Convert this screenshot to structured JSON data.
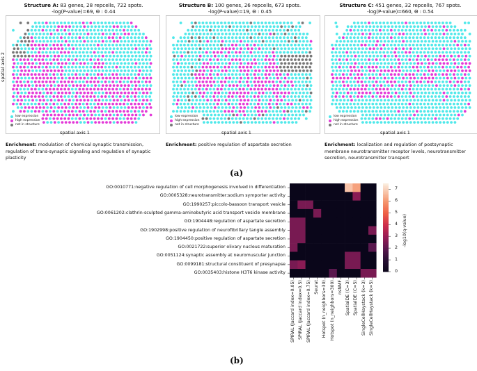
{
  "panel_a": {
    "structures": [
      {
        "name": "Structure A:",
        "rest": " 83 genes, 28 repcells, 722 spots.",
        "stats": "-log(P-value)=69, Θ : 0.44",
        "enrich_label": "Enrichment:",
        "enrich_text": " modulation of chemical synaptic transmission, regulation of trans-synaptic signaling and regulation of synaptic plasticity",
        "axis": "spatial axis 1"
      },
      {
        "name": "Structure B:",
        "rest": " 100 genes, 26 repcells, 673 spots.",
        "stats": "-log(P-value)=19, Θ : 0.45",
        "enrich_label": "Enrichment:",
        "enrich_text": " positive regulation of aspartate secretion",
        "axis": "spatial axis 1"
      },
      {
        "name": "Structure C:",
        "rest": " 451 genes, 32 repcells, 767 spots.",
        "stats": "-log(P-value)=660, Θ : 0.54",
        "enrich_label": "Enrichment:",
        "enrich_text": " localization and regulation of postsynaptic membrane neurotransmitter receptor levels, neurotransmitter secretion, neurotransmitter transport",
        "axis": "spatial axis 1"
      }
    ],
    "y_axis": "spatial axis 2",
    "legend": [
      "low expression",
      "high expression",
      "not in structure"
    ],
    "colors": {
      "low": "#4fe8ea",
      "high": "#e33ad8",
      "not": "#777777"
    },
    "fig_label": "(a)"
  },
  "panel_b": {
    "fig_label": "(b)",
    "chart_data": {
      "type": "heatmap",
      "rows": [
        "GO:0010771:negative regulation of cell morphogenesis involved in differentiation",
        "GO:0005328:neurotransmitter:sodium symporter activity",
        "GO:1990257:piccolo-bassoon transport vesicle",
        "GO:0061202:clathrin-sculpted gamma-aminobutyric acid transport vesicle membrane",
        "GO:1904448:regulation of aspartate secretion",
        "GO:1902998:positive regulation of neurofibrillary tangle assembly",
        "GO:1904450:positive regulation of aspartate secretion",
        "GO:0021722:superior olivary nucleus maturation",
        "GO:0051124:synaptic assembly at neuromuscular junction",
        "GO:0099181:structural constituent of presynapse",
        "GO:0035403:histone H3T6 kinase activity"
      ],
      "columns": [
        "SPIRAL (Jaccard index=0.05)",
        "SPIRAL (Jaccard index=0.5)",
        "SPIRAL (Jaccard index=0.75)",
        "Seurat",
        "Hotspot (n_neighbors=30)",
        "Hotspot (n_neighbors=300)",
        "nsNMF",
        "SpatialDE (C=3)",
        "SpatialDE (C=5)",
        "SingleCellHaystack (k=3)",
        "SingleCellHaystack (k=5)"
      ],
      "values": [
        [
          0,
          0,
          0,
          0,
          0,
          0,
          0,
          6.8,
          6.2,
          0,
          0
        ],
        [
          0,
          0,
          0,
          0,
          0,
          0,
          0,
          0,
          2.8,
          0,
          0
        ],
        [
          0,
          2.5,
          2.5,
          0,
          0,
          0,
          0,
          0,
          0,
          0,
          0
        ],
        [
          0,
          0,
          0,
          2.5,
          0,
          0,
          0,
          0,
          0,
          0,
          0
        ],
        [
          2.5,
          2.5,
          0,
          0,
          0,
          0,
          0,
          0,
          0,
          0,
          0
        ],
        [
          2.5,
          2.5,
          0,
          0,
          0,
          0,
          0,
          0,
          0,
          0,
          2.5
        ],
        [
          2.5,
          2.5,
          0,
          0,
          0,
          0,
          0,
          0,
          0,
          0,
          0
        ],
        [
          2.5,
          0,
          0,
          0,
          0,
          0,
          0,
          0,
          0,
          0,
          2.0
        ],
        [
          0,
          0,
          0,
          0,
          0,
          0,
          0,
          2.5,
          2.5,
          0,
          0
        ],
        [
          2.5,
          2.8,
          0,
          0,
          0,
          0,
          0,
          2.5,
          2.5,
          0,
          0
        ],
        [
          0,
          0,
          0,
          0,
          0,
          2.0,
          0,
          0,
          0,
          2.5,
          2.5
        ]
      ],
      "colorbar": {
        "label": "-log10(q-value)",
        "ticks": [
          "7",
          "6",
          "5",
          "4",
          "3",
          "2",
          "1",
          "0"
        ],
        "range": [
          0,
          7.5
        ]
      }
    }
  }
}
